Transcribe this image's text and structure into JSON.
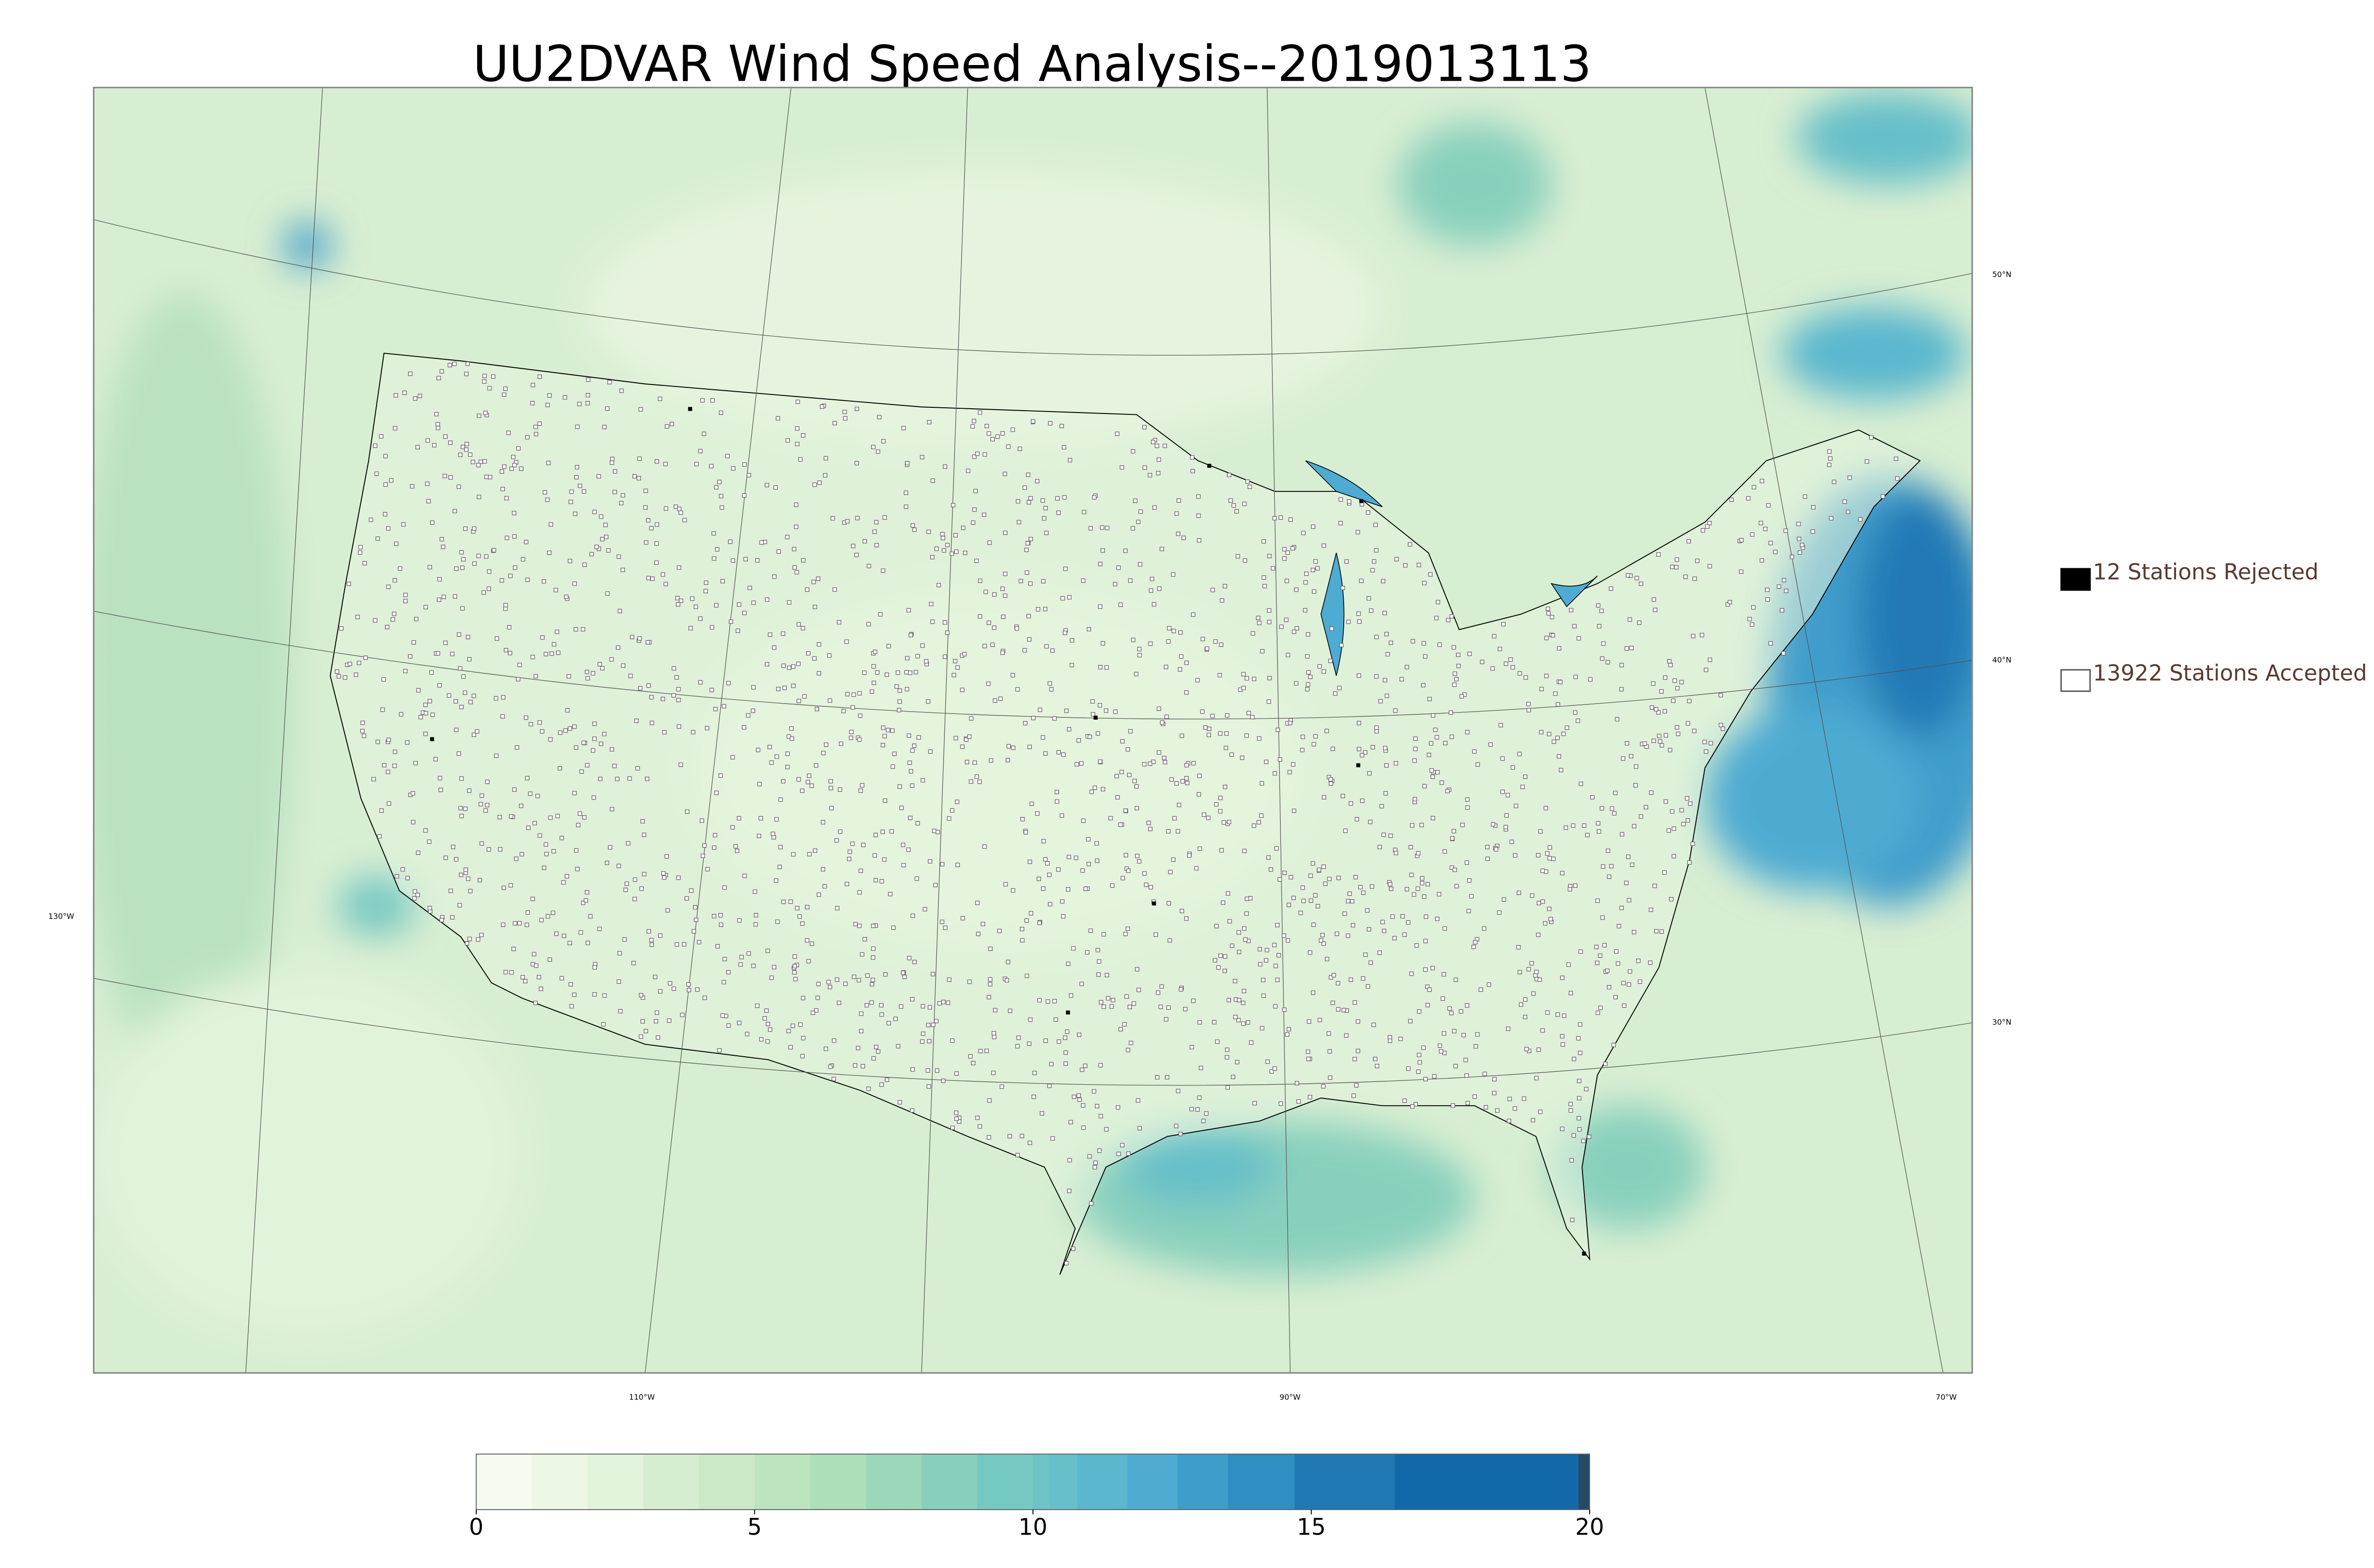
{
  "title": "UU2DVAR Wind Speed Analysis--2019013113",
  "legend": [
    {
      "label": "12 Stations Rejected",
      "marker": "filled"
    },
    {
      "label": "13922 Stations Accepted",
      "marker": "open"
    }
  ],
  "colorbar": {
    "lim": [
      0,
      20
    ],
    "ticks": [
      0,
      5,
      10,
      15,
      20
    ],
    "bounds": [
      0,
      1,
      2,
      3,
      4,
      5,
      6,
      7,
      8,
      9,
      10,
      10.3,
      10.8,
      11.7,
      12.6,
      13.5,
      14.7,
      16.5,
      19.8,
      20
    ],
    "colors": [
      "#f5fbef",
      "#ecf7e6",
      "#e2f3dc",
      "#d6eed0",
      "#cbe9c5",
      "#bde5bd",
      "#addfb8",
      "#9bd8b9",
      "#88d0bd",
      "#76c8c3",
      "#6ec3c6",
      "#66bfc9",
      "#5ab7ce",
      "#4eabd2",
      "#3f9dcb",
      "#308fc2",
      "#2079b5",
      "#1169a9",
      "#264a64"
    ]
  },
  "graticule": {
    "lat_labels": [
      "50°N",
      "40°N",
      "30°N"
    ],
    "lon_labels": [
      "130°W",
      "110°W",
      "90°W",
      "70°W"
    ]
  }
}
